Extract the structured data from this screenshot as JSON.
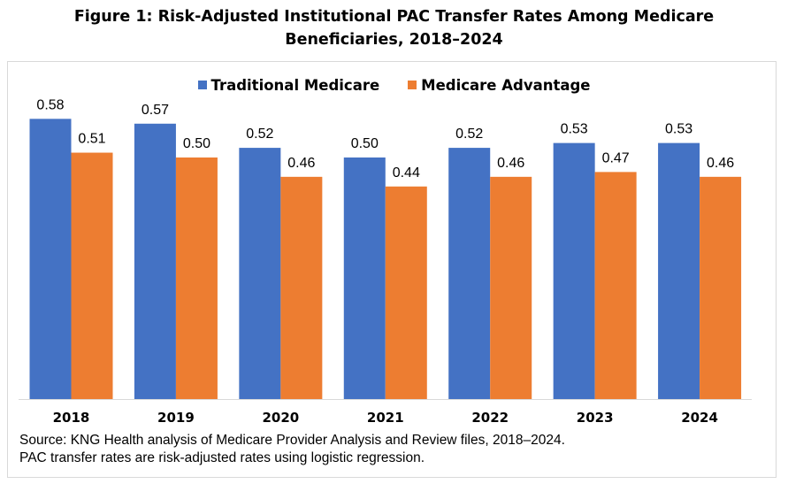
{
  "title": "Figure 1: Risk-Adjusted Institutional PAC Transfer Rates Among Medicare Beneficiaries, 2018–2024",
  "source_lines": [
    "Source: KNG Health analysis of Medicare Provider Analysis and Review files, 2018–2024.",
    "PAC transfer rates are risk-adjusted rates using logistic regression."
  ],
  "colors": {
    "traditional": "#4472C4",
    "advantage": "#ED7D31",
    "axis": "#d9d9d9"
  },
  "chart_data": {
    "type": "bar",
    "categories": [
      "2018",
      "2019",
      "2020",
      "2021",
      "2022",
      "2023",
      "2024"
    ],
    "series": [
      {
        "name": "Traditional Medicare",
        "values": [
          0.58,
          0.57,
          0.52,
          0.5,
          0.52,
          0.53,
          0.53
        ],
        "labels": [
          "0.58",
          "0.57",
          "0.52",
          "0.50",
          "0.52",
          "0.53",
          "0.53"
        ]
      },
      {
        "name": "Medicare Advantage",
        "values": [
          0.51,
          0.5,
          0.46,
          0.44,
          0.46,
          0.47,
          0.46
        ],
        "labels": [
          "0.51",
          "0.50",
          "0.46",
          "0.44",
          "0.46",
          "0.47",
          "0.46"
        ]
      }
    ],
    "ylim": [
      0,
      0.64
    ],
    "legend": "top-center",
    "grid": false
  }
}
